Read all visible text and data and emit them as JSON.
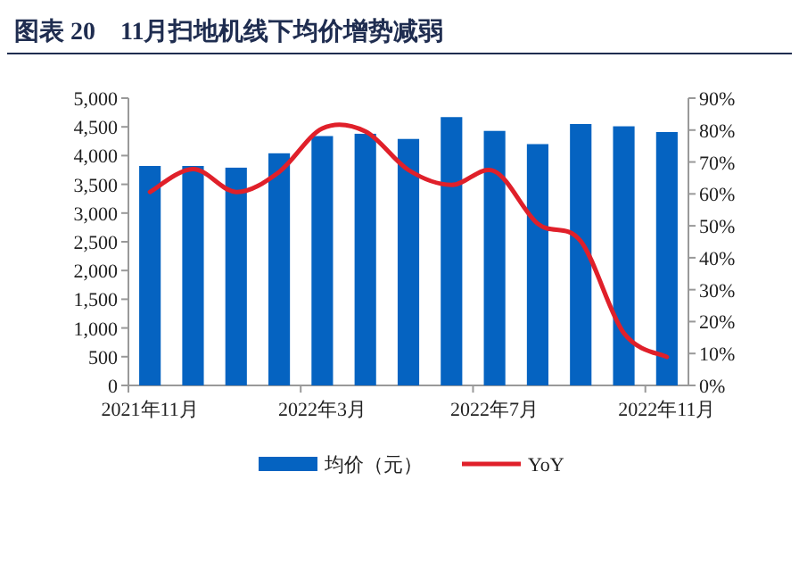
{
  "chart_data": {
    "type": "bar",
    "title": "图表 20　11月扫地机线下均价增势减弱",
    "categories": [
      "2021年11月",
      null,
      null,
      null,
      "2022年3月",
      null,
      null,
      null,
      "2022年7月",
      null,
      null,
      null,
      "2022年11月"
    ],
    "series": [
      {
        "name": "均价（元）",
        "color": "#0563c1",
        "values": [
          3820,
          3820,
          3790,
          4040,
          4340,
          4380,
          4290,
          4670,
          4430,
          4200,
          4550,
          4510,
          4410
        ]
      },
      {
        "name": "YoY",
        "type": "line",
        "axis": "y2",
        "color": "#e0202a",
        "values": [
          60.6,
          67.8,
          60.6,
          66.9,
          80.5,
          79.6,
          67.5,
          62.8,
          67.1,
          50.7,
          45.2,
          16.4,
          8.9
        ]
      }
    ],
    "ylim": [
      0,
      5000
    ],
    "yticks": [
      {
        "value": 0,
        "label": "0"
      },
      {
        "value": 500,
        "label": "500"
      },
      {
        "value": 1000,
        "label": "1,000"
      },
      {
        "value": 1500,
        "label": "1,500"
      },
      {
        "value": 2000,
        "label": "2,000"
      },
      {
        "value": 2500,
        "label": "2,500"
      },
      {
        "value": 3000,
        "label": "3,000"
      },
      {
        "value": 3500,
        "label": "3,500"
      },
      {
        "value": 4000,
        "label": "4,000"
      },
      {
        "value": 4500,
        "label": "4,500"
      },
      {
        "value": 5000,
        "label": "5,000"
      }
    ],
    "y2lim": [
      0,
      90
    ],
    "y2ticks": [
      {
        "value": 0,
        "label": "0%"
      },
      {
        "value": 10,
        "label": "10%"
      },
      {
        "value": 20,
        "label": "20%"
      },
      {
        "value": 30,
        "label": "30%"
      },
      {
        "value": 40,
        "label": "40%"
      },
      {
        "value": 50,
        "label": "50%"
      },
      {
        "value": 60,
        "label": "60%"
      },
      {
        "value": 70,
        "label": "70%"
      },
      {
        "value": 80,
        "label": "80%"
      },
      {
        "value": 90,
        "label": "90%"
      }
    ],
    "legend": "bottom"
  }
}
